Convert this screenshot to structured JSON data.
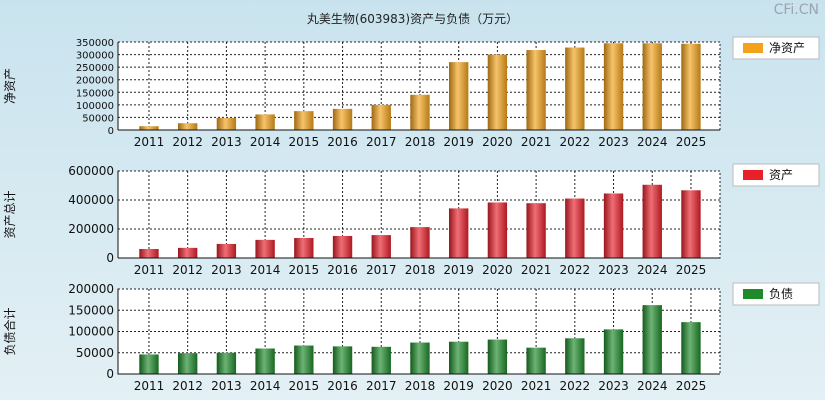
{
  "title": "丸美生物(603983)资产与负债（万元）",
  "watermark": "CFi.CN",
  "chart_data": [
    {
      "type": "bar",
      "id": "net-assets",
      "ylabel": "净资产",
      "legend": "净资产",
      "color": "#f3a21c",
      "categories": [
        "2011",
        "2012",
        "2013",
        "2014",
        "2015",
        "2016",
        "2017",
        "2018",
        "2019",
        "2020",
        "2021",
        "2022",
        "2023",
        "2024",
        "2025"
      ],
      "values": [
        15000,
        27000,
        48000,
        62000,
        75000,
        84000,
        100000,
        140000,
        270000,
        300000,
        318000,
        328000,
        345000,
        345000,
        343000
      ],
      "ylim": [
        0,
        350000
      ],
      "yticks": [
        "0",
        "50000",
        "100000",
        "150000",
        "200000",
        "250000",
        "300000",
        "350000"
      ],
      "ytick_values": [
        0,
        50000,
        100000,
        150000,
        200000,
        250000,
        300000,
        350000
      ]
    },
    {
      "type": "bar",
      "id": "total-assets",
      "ylabel": "资产总计",
      "legend": "资产",
      "color": "#e8202a",
      "categories": [
        "2011",
        "2012",
        "2013",
        "2014",
        "2015",
        "2016",
        "2017",
        "2018",
        "2019",
        "2020",
        "2021",
        "2022",
        "2023",
        "2024",
        "2025"
      ],
      "values": [
        62000,
        70000,
        97000,
        125000,
        138000,
        152000,
        158000,
        213000,
        342000,
        383000,
        378000,
        410000,
        445000,
        505000,
        467000
      ],
      "ylim": [
        0,
        600000
      ],
      "yticks": [
        "0",
        "200000",
        "400000",
        "600000"
      ],
      "ytick_values": [
        0,
        200000,
        400000,
        600000
      ]
    },
    {
      "type": "bar",
      "id": "total-liabilities",
      "ylabel": "负债合计",
      "legend": "负债",
      "color": "#1f8a2a",
      "categories": [
        "2011",
        "2012",
        "2013",
        "2014",
        "2015",
        "2016",
        "2017",
        "2018",
        "2019",
        "2020",
        "2021",
        "2022",
        "2023",
        "2024",
        "2025"
      ],
      "values": [
        46000,
        49000,
        50000,
        60000,
        67000,
        65000,
        64000,
        74000,
        76000,
        81000,
        62000,
        84000,
        105000,
        162000,
        122000
      ],
      "ylim": [
        0,
        200000
      ],
      "yticks": [
        "0",
        "50000",
        "100000",
        "150000",
        "200000"
      ],
      "ytick_values": [
        0,
        50000,
        100000,
        150000,
        200000
      ]
    }
  ]
}
